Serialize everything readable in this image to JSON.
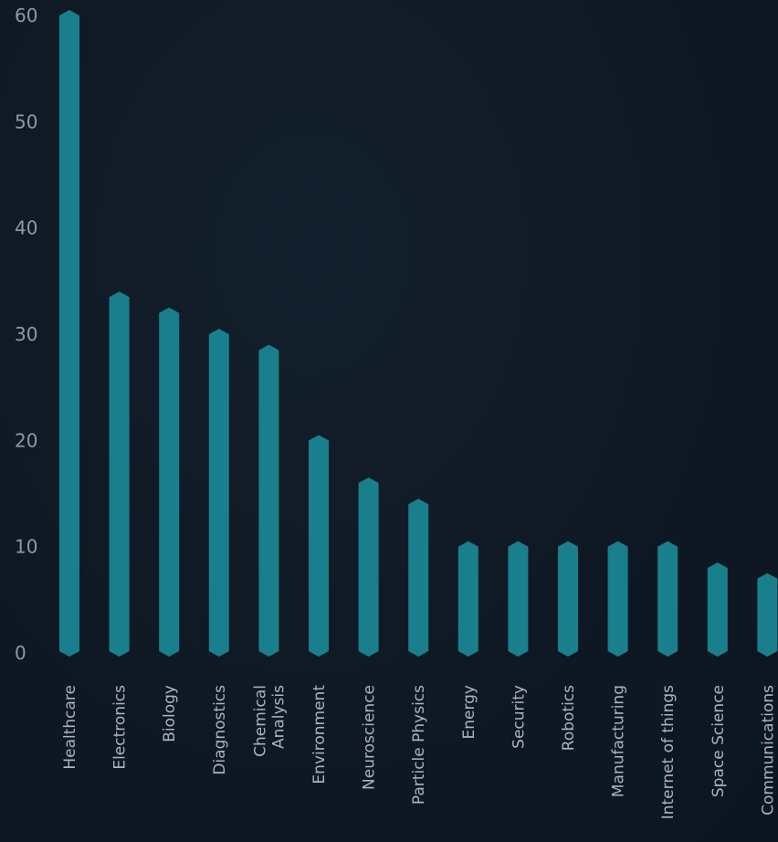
{
  "chart_data": {
    "type": "bar",
    "title": "",
    "xlabel": "",
    "ylabel": "",
    "ylim": [
      0,
      60
    ],
    "yticks": [
      0,
      10,
      20,
      30,
      40,
      50,
      60
    ],
    "grid": false,
    "legend": "none",
    "bar_color": "#1a7f8c",
    "categories": [
      [
        "Healthcare"
      ],
      [
        "Electronics"
      ],
      [
        "Biology"
      ],
      [
        "Diagnostics"
      ],
      [
        "Chemical",
        "Analysis"
      ],
      [
        "Environment"
      ],
      [
        "Neuroscience"
      ],
      [
        "Particle Physics"
      ],
      [
        "Energy"
      ],
      [
        "Security"
      ],
      [
        "Robotics"
      ],
      [
        "Manufacturing"
      ],
      [
        "Internet of things"
      ],
      [
        "Space Science"
      ],
      [
        "Communications"
      ]
    ],
    "values": [
      60,
      33.5,
      32,
      30,
      28.5,
      20,
      16,
      14,
      10,
      10,
      10,
      10,
      10,
      8,
      7
    ]
  }
}
